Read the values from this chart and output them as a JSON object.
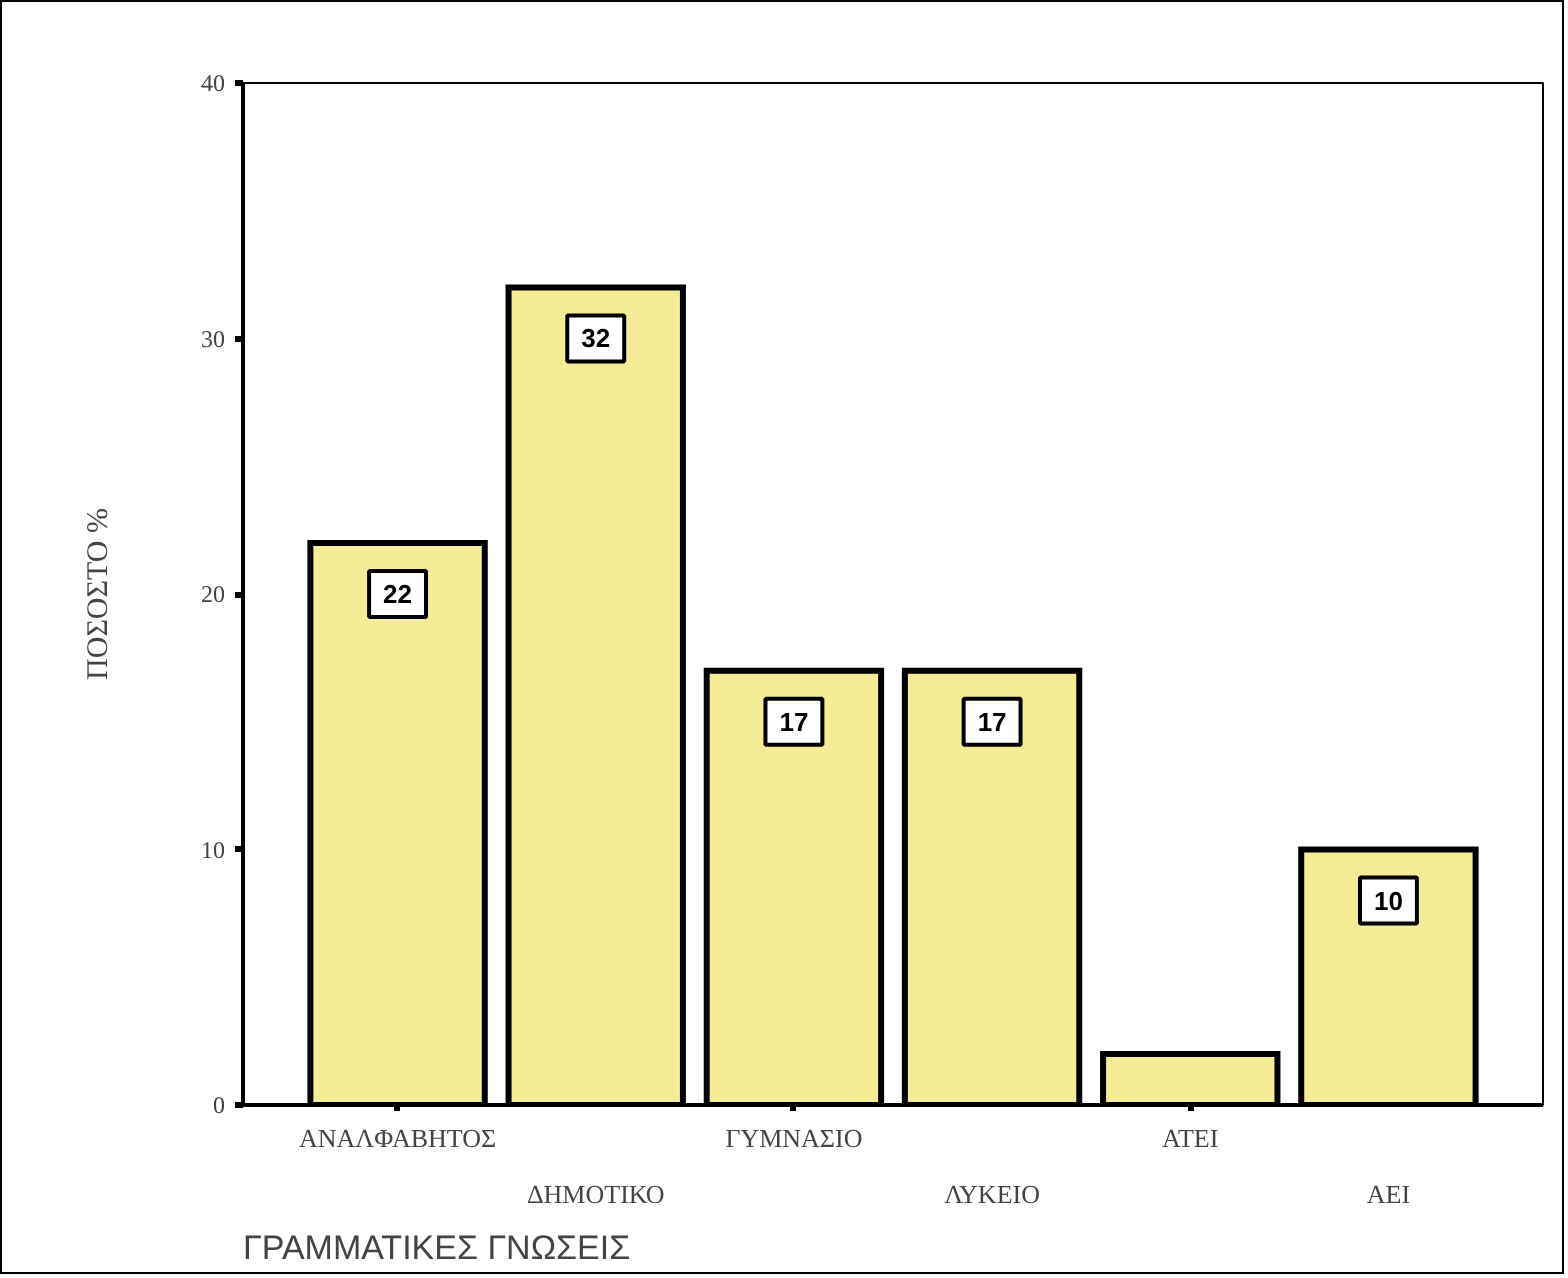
{
  "chart_data": {
    "type": "bar",
    "xlabel": "ΓΡΑΜΜΑΤΙΚΕΣ ΓΝΩΣΕΙΣ",
    "ylabel": "ΠΟΣΟΣΤΟ %",
    "categories": [
      "ΑΝΑΛΦΑΒΗΤΟΣ",
      "ΔΗΜΟΤΙΚΟ",
      "ΓΥΜΝΑΣΙΟ",
      "ΛΥΚΕΙΟ",
      "ΑΤΕΙ",
      "ΑΕΙ"
    ],
    "values": [
      22,
      32,
      17,
      17,
      2,
      10
    ],
    "color": "#f5ec98",
    "value_labels": [
      "22",
      "32",
      "17",
      "17",
      null,
      "10"
    ],
    "ylim": [
      0,
      40
    ],
    "yticks": [
      0,
      10,
      20,
      30,
      40
    ]
  }
}
